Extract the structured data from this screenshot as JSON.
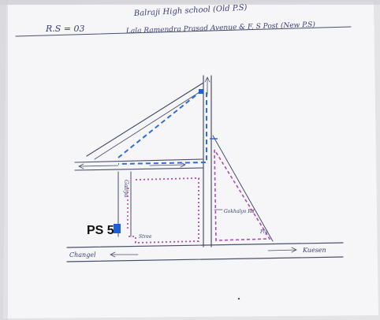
{
  "header": {
    "rs_label": "R.S = 03",
    "school_line": "Balraji High school (Old P.S)",
    "road_line": "Lala Ramendra Prasad Avenue & F. S Post (New P.S)"
  },
  "map": {
    "ps_label": "PS 5",
    "road_left_label": "Changel",
    "road_right_label": "Kuesen",
    "side_lane_label": "Galiya",
    "small_label_bottom": "Stree",
    "right_lane_label": "Gokhalyo Rd",
    "far_right_label": "Ply"
  },
  "colors": {
    "paper": "#f6f6f8",
    "background": "#e4e3e6",
    "blue_route": "#2f6fd4",
    "purple_boundary": "#b04bc0",
    "pencil": "#4b4f6a",
    "marker": "#1f5fd6"
  }
}
